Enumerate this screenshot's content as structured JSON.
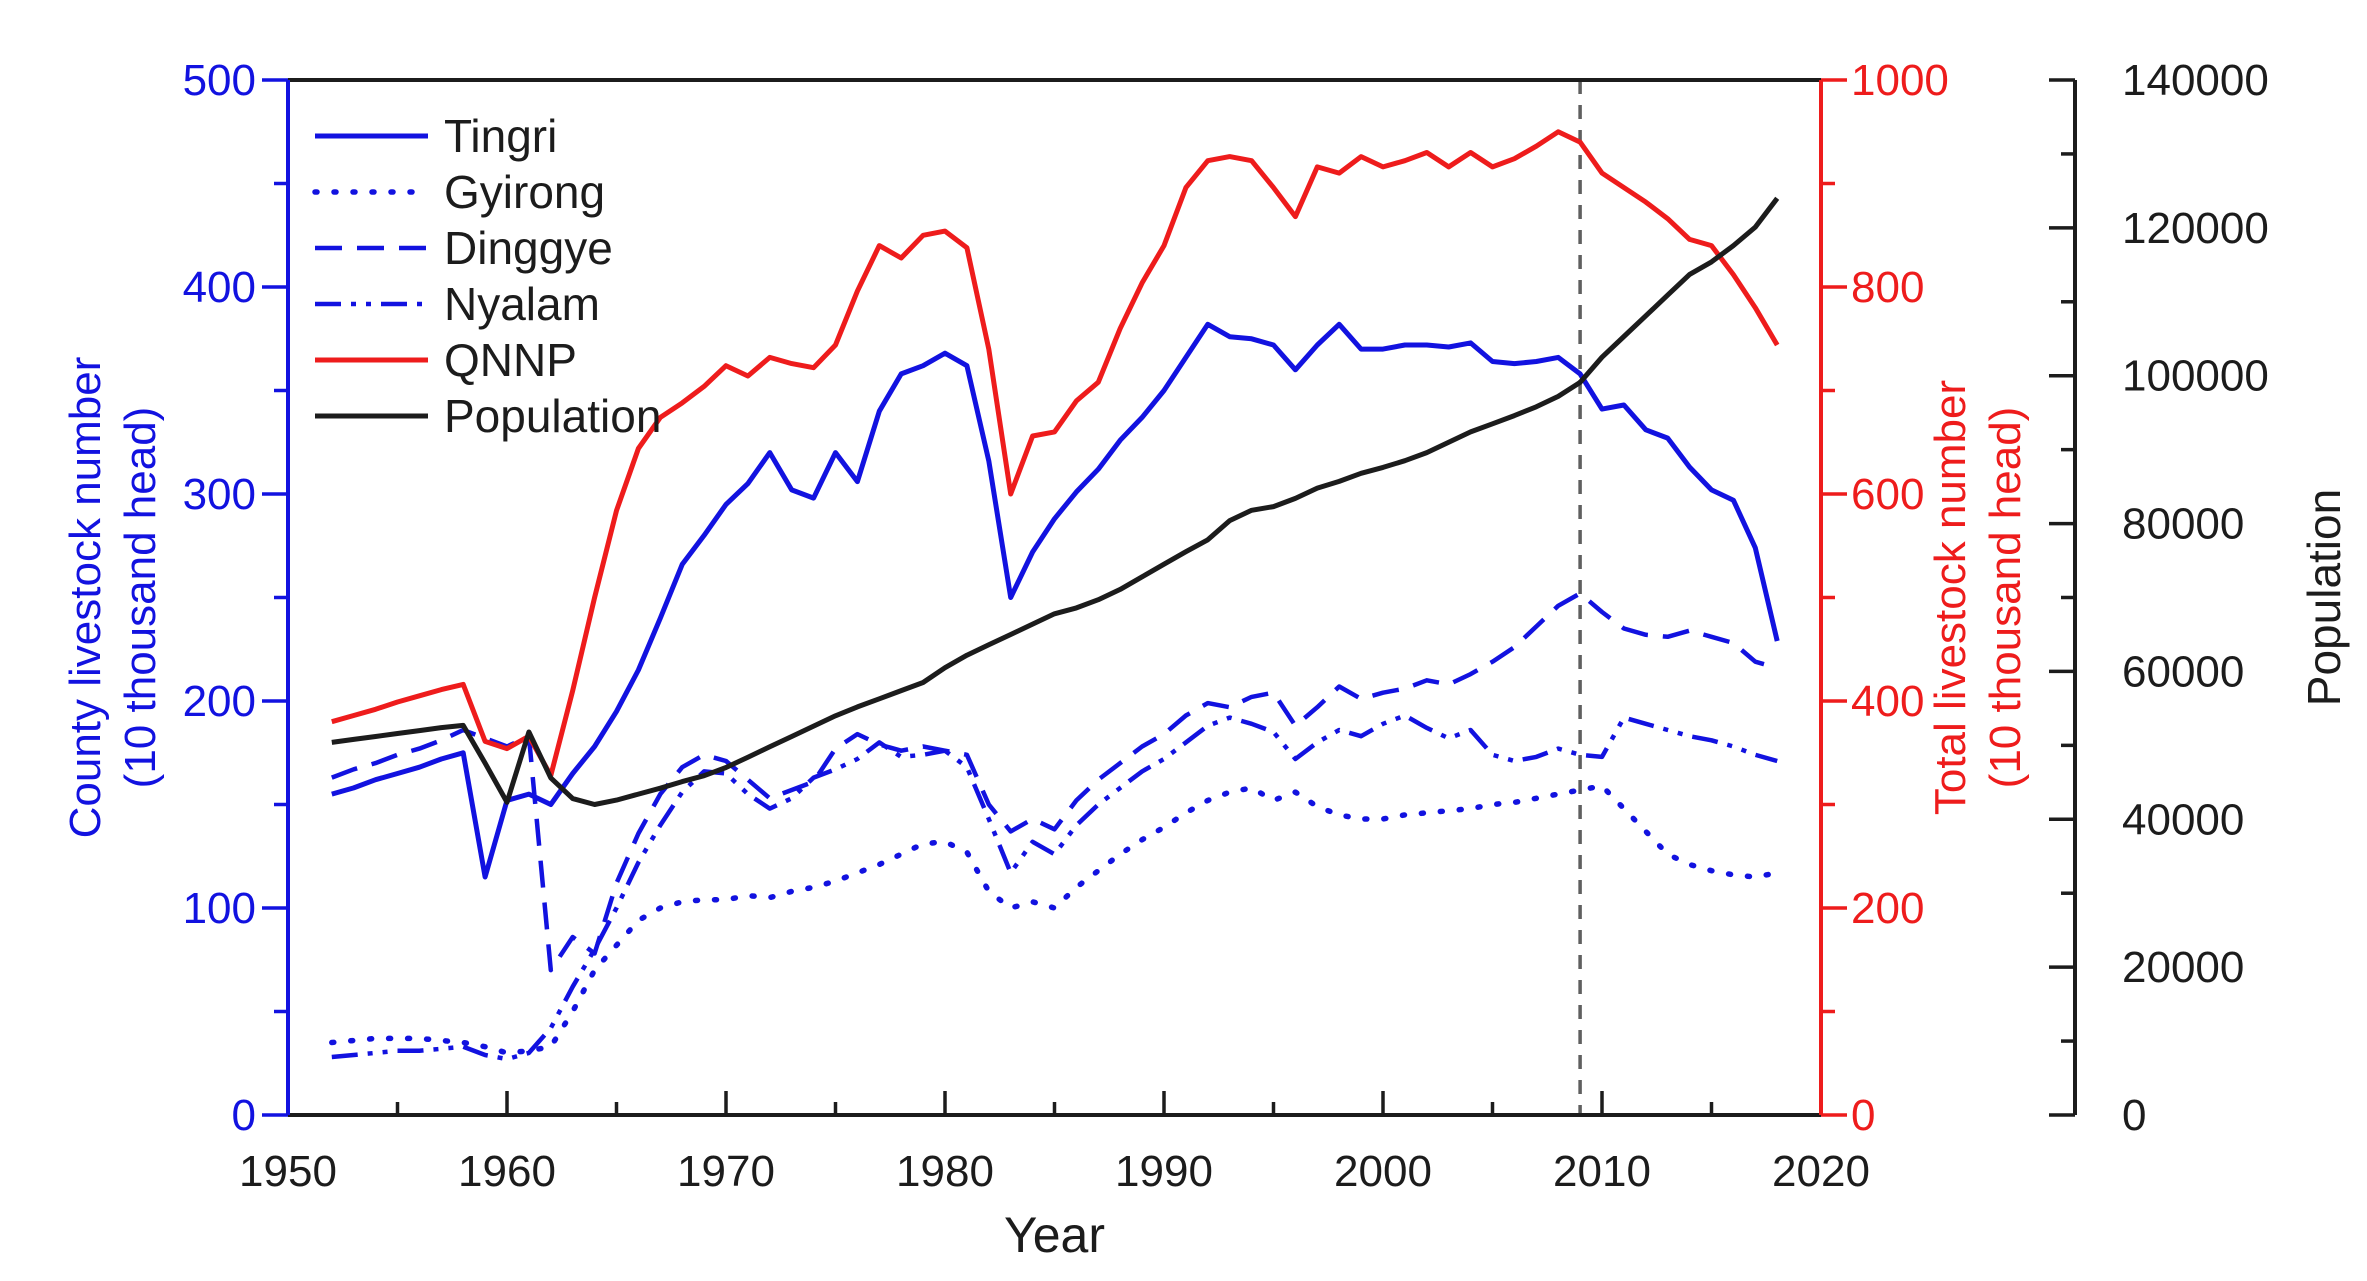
{
  "chart_data": {
    "type": "line",
    "title": "",
    "xlabel": "Year",
    "background": "#ffffff",
    "x": [
      1952,
      1953,
      1954,
      1955,
      1956,
      1957,
      1958,
      1959,
      1960,
      1961,
      1962,
      1963,
      1964,
      1965,
      1966,
      1967,
      1968,
      1969,
      1970,
      1971,
      1972,
      1973,
      1974,
      1975,
      1976,
      1977,
      1978,
      1979,
      1980,
      1981,
      1982,
      1983,
      1984,
      1985,
      1986,
      1987,
      1988,
      1989,
      1990,
      1991,
      1992,
      1993,
      1994,
      1995,
      1996,
      1997,
      1998,
      1999,
      2000,
      2001,
      2002,
      2003,
      2004,
      2005,
      2006,
      2007,
      2008,
      2009,
      2010,
      2011,
      2012,
      2013,
      2014,
      2015,
      2016,
      2017,
      2018
    ],
    "x_axis": {
      "min": 1950,
      "max": 2020,
      "major_step": 10,
      "minor_step": 5,
      "tick_labels": [
        "1950",
        "1960",
        "1970",
        "1980",
        "1990",
        "2000",
        "2010",
        "2020"
      ],
      "color": "#1c1c1c"
    },
    "axes": {
      "left": {
        "title_lines": [
          "County livestock number",
          "(10 thousand head)"
        ],
        "min": 0,
        "max": 500,
        "major_step": 100,
        "minor_step": 50,
        "tick_labels": [
          "0",
          "100",
          "200",
          "300",
          "400",
          "500"
        ],
        "color": "#1212e0"
      },
      "right": {
        "title_lines": [
          "Total livestock number",
          "(10 thousand head)"
        ],
        "min": 0,
        "max": 1000,
        "major_step": 200,
        "minor_step": 100,
        "tick_labels": [
          "0",
          "200",
          "400",
          "600",
          "800",
          "1000"
        ],
        "color": "#ee1c1c"
      },
      "population": {
        "title": "Population",
        "min": 0,
        "max": 140000,
        "major_step": 20000,
        "minor_step": 10000,
        "tick_labels": [
          "0",
          "20000",
          "40000",
          "60000",
          "80000",
          "100000",
          "120000",
          "140000"
        ],
        "color": "#1c1c1c"
      }
    },
    "annotations": {
      "dashed_vline_year": 2009,
      "vline_color": "#5f5f5f"
    },
    "legend_position": "top-left",
    "series": [
      {
        "name": "Tingri",
        "axis": "left",
        "color": "#1212e0",
        "style": "solid",
        "values": [
          155,
          158,
          162,
          165,
          168,
          172,
          175,
          115,
          152,
          155,
          150,
          165,
          178,
          195,
          215,
          240,
          266,
          280,
          295,
          305,
          320,
          302,
          298,
          320,
          306,
          340,
          358,
          362,
          368,
          362,
          316,
          250,
          272,
          288,
          301,
          312,
          326,
          337,
          350,
          366,
          382,
          376,
          375,
          372,
          360,
          372,
          382,
          370,
          370,
          372,
          372,
          371,
          373,
          364,
          363,
          364,
          366,
          358,
          341,
          343,
          331,
          327,
          313,
          302,
          297,
          274,
          229
        ]
      },
      {
        "name": "Gyirong",
        "axis": "left",
        "color": "#1212e0",
        "style": "dotted",
        "values": [
          35,
          36,
          37,
          37,
          37,
          36,
          35,
          33,
          30,
          31,
          33,
          50,
          70,
          82,
          94,
          100,
          103,
          104,
          104,
          106,
          105,
          108,
          110,
          113,
          117,
          121,
          126,
          131,
          132,
          127,
          108,
          100,
          103,
          100,
          110,
          118,
          126,
          133,
          139,
          146,
          152,
          156,
          158,
          152,
          156,
          149,
          145,
          143,
          143,
          145,
          146,
          147,
          148,
          150,
          151,
          153,
          155,
          157,
          159,
          148,
          137,
          126,
          121,
          118,
          116,
          115,
          117
        ]
      },
      {
        "name": "Dinggye",
        "axis": "left",
        "color": "#1212e0",
        "style": "dashed",
        "values": [
          163,
          167,
          170,
          174,
          177,
          181,
          186,
          182,
          178,
          183,
          70,
          86,
          78,
          112,
          136,
          155,
          168,
          174,
          171,
          162,
          153,
          157,
          161,
          177,
          184,
          179,
          176,
          178,
          176,
          174,
          150,
          137,
          143,
          138,
          152,
          162,
          170,
          178,
          184,
          193,
          199,
          197,
          202,
          204,
          188,
          197,
          207,
          201,
          204,
          206,
          210,
          208,
          213,
          219,
          226,
          236,
          246,
          252,
          243,
          235,
          232,
          231,
          234,
          231,
          228,
          219,
          216
        ]
      },
      {
        "name": "Nyalam",
        "axis": "left",
        "color": "#1212e0",
        "style": "dash-dot-dot",
        "values": [
          28,
          29,
          30,
          31,
          31,
          32,
          33,
          29,
          27,
          30,
          42,
          62,
          80,
          100,
          122,
          140,
          156,
          166,
          165,
          155,
          148,
          153,
          163,
          167,
          172,
          180,
          173,
          174,
          176,
          168,
          143,
          117,
          132,
          126,
          140,
          150,
          158,
          166,
          172,
          180,
          188,
          192,
          189,
          185,
          172,
          180,
          186,
          183,
          189,
          193,
          187,
          182,
          186,
          174,
          171,
          173,
          177,
          174,
          173,
          192,
          189,
          186,
          183,
          181,
          178,
          174,
          171
        ]
      },
      {
        "name": "QNNP",
        "axis": "right",
        "color": "#ee1c1c",
        "style": "solid",
        "values": [
          380,
          386,
          392,
          399,
          405,
          411,
          416,
          361,
          354,
          366,
          328,
          410,
          500,
          584,
          644,
          674,
          688,
          704,
          724,
          714,
          732,
          726,
          722,
          744,
          796,
          840,
          828,
          850,
          854,
          838,
          740,
          600,
          656,
          660,
          690,
          708,
          760,
          804,
          840,
          896,
          922,
          926,
          922,
          896,
          868,
          916,
          910,
          926,
          916,
          922,
          930,
          916,
          930,
          916,
          924,
          936,
          950,
          940,
          910,
          896,
          882,
          866,
          846,
          840,
          812,
          780,
          744
        ]
      },
      {
        "name": "Population",
        "axis": "population",
        "color": "#1c1c1c",
        "style": "solid",
        "values": [
          50400,
          50800,
          51200,
          51600,
          52000,
          52400,
          52700,
          47600,
          42300,
          51800,
          45600,
          42800,
          42000,
          42600,
          43400,
          44200,
          45100,
          45900,
          47000,
          48400,
          49800,
          51200,
          52600,
          54000,
          55200,
          56300,
          57400,
          58500,
          60500,
          62200,
          63600,
          65000,
          66400,
          67800,
          68600,
          69700,
          71100,
          72800,
          74500,
          76200,
          77800,
          80400,
          81800,
          82300,
          83400,
          84800,
          85700,
          86800,
          87600,
          88500,
          89600,
          91000,
          92400,
          93500,
          94600,
          95800,
          97200,
          99100,
          102500,
          105300,
          108100,
          110900,
          113700,
          115400,
          117600,
          120100,
          124000
        ]
      }
    ]
  }
}
